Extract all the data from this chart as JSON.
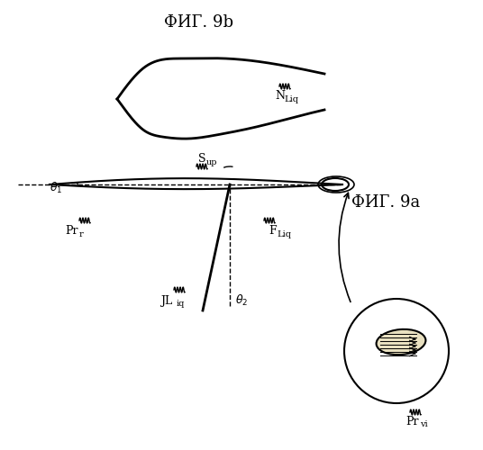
{
  "bg_color": "#ffffff",
  "line_color": "#000000",
  "fig9a_label": "ФИГ. 9a",
  "fig9b_label": "ФИГ. 9b",
  "label_JLiq": "JL",
  "label_JLiq_sub": "iq",
  "label_theta2": "θ2",
  "label_theta1": "θ1",
  "label_Prr": "Pr",
  "label_Prr_sub": "r",
  "label_FLiq": "F",
  "label_FLiq_sub": "Liq",
  "label_Sup": "S",
  "label_Sup_sub": "up",
  "label_Prvi": "Pr",
  "label_Prvi_sub": "vi",
  "label_NLiq": "N",
  "label_NLiq_sub": "Liq"
}
